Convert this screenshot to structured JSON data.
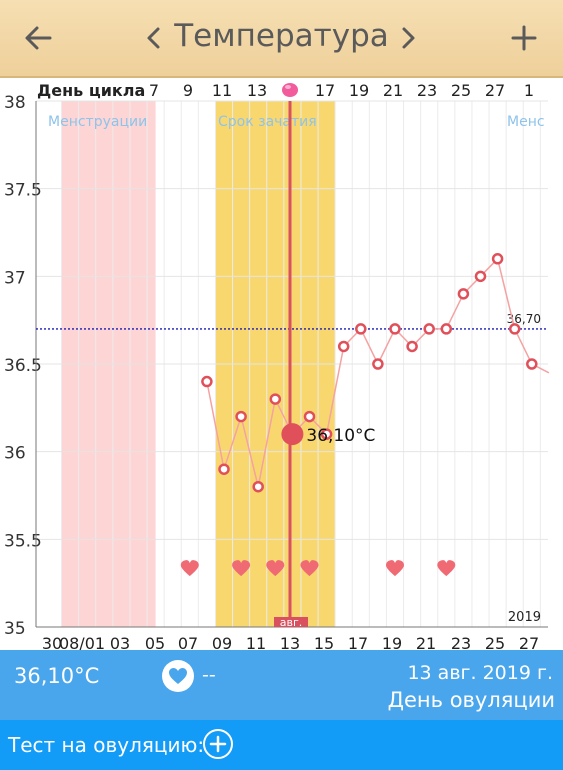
{
  "header": {
    "title": "Температура",
    "back_icon": "arrow-left-icon",
    "prev_icon": "chevron-left-icon",
    "next_icon": "chevron-right-icon",
    "add_icon": "plus-icon"
  },
  "chart_data": {
    "type": "line",
    "cycle_day_label": "День цикла",
    "cycle_day_ticks": [
      "7",
      "9",
      "11",
      "13",
      "17",
      "19",
      "21",
      "23",
      "25",
      "27",
      "1"
    ],
    "date_ticks": [
      "30",
      "08/01",
      "03",
      "05",
      "07",
      "09",
      "11",
      "13",
      "15",
      "17",
      "19",
      "21",
      "23",
      "25",
      "27"
    ],
    "y_ticks": [
      "38",
      "37.5",
      "37",
      "36.5",
      "36",
      "35.5",
      "35"
    ],
    "ylim": [
      35,
      38
    ],
    "year_label": "2019",
    "month_marker": "авг.",
    "zones": [
      {
        "label": "Менструации",
        "color": "#fdd5d5"
      },
      {
        "label": "Срок зачатия",
        "color": "#f8d86e"
      },
      {
        "label": "Менс",
        "color": "#fdd5d5"
      }
    ],
    "coverline": {
      "value": 36.7,
      "label": "36,70"
    },
    "selected": {
      "date": "13",
      "value": 36.1,
      "label": "36,10°C"
    },
    "series": [
      {
        "x": [
          "08",
          "09",
          "10",
          "11",
          "12",
          "13",
          "14",
          "15",
          "16",
          "17",
          "18",
          "19",
          "20",
          "21",
          "22",
          "23",
          "24",
          "25",
          "26",
          "27",
          "28"
        ],
        "values": [
          36.4,
          35.9,
          36.2,
          35.8,
          36.3,
          36.1,
          36.2,
          36.1,
          36.6,
          36.7,
          36.5,
          36.7,
          36.6,
          36.7,
          36.7,
          36.9,
          37.0,
          37.1,
          36.7,
          36.5,
          36.45
        ]
      }
    ],
    "intercourse_days": [
      "07",
      "10",
      "12",
      "14",
      "19",
      "22"
    ],
    "colors": {
      "line": "#f4a2a2",
      "marker": "#e0505a",
      "coverline": "#1a1ab8",
      "ovulation_line": "#d9505e"
    }
  },
  "status": {
    "temperature": "36,10°C",
    "heart_icon": "heart-icon",
    "intercourse_value": "--",
    "date": "13 авг. 2019 г.",
    "phase": "День овуляции"
  },
  "footer": {
    "ovulation_test_label": "Тест на овуляцию:",
    "add_icon": "plus-circle-icon"
  }
}
